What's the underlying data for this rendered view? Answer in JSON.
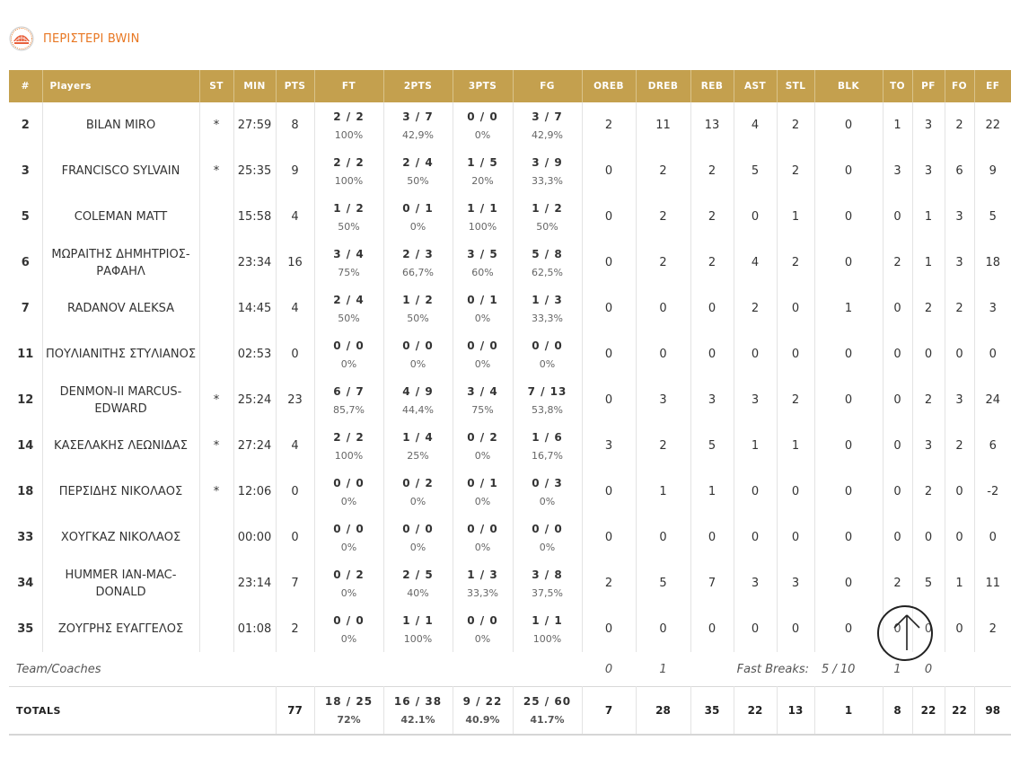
{
  "team": {
    "name": "ΠΕΡΙΣΤΕΡΙ BWIN",
    "logo_icon": "peristeri-logo-icon"
  },
  "columns": [
    "#",
    "Players",
    "ST",
    "MIN",
    "PTS",
    "FT",
    "2PTS",
    "3PTS",
    "FG",
    "OREB",
    "DREB",
    "REB",
    "AST",
    "STL",
    "BLK",
    "TO",
    "PF",
    "FO",
    "EF"
  ],
  "players": [
    {
      "num": "2",
      "name": "BILAN MIRO",
      "st": "*",
      "min": "27:59",
      "pts": "8",
      "ft": "2 / 2",
      "ft_pct": "100%",
      "p2": "3 / 7",
      "p2_pct": "42,9%",
      "p3": "0 / 0",
      "p3_pct": "0%",
      "fg": "3 / 7",
      "fg_pct": "42,9%",
      "oreb": "2",
      "dreb": "11",
      "reb": "13",
      "ast": "4",
      "stl": "2",
      "blk": "0",
      "to": "1",
      "pf": "3",
      "fo": "2",
      "ef": "22"
    },
    {
      "num": "3",
      "name": "FRANCISCO SYLVAIN",
      "st": "*",
      "min": "25:35",
      "pts": "9",
      "ft": "2 / 2",
      "ft_pct": "100%",
      "p2": "2 / 4",
      "p2_pct": "50%",
      "p3": "1 / 5",
      "p3_pct": "20%",
      "fg": "3 / 9",
      "fg_pct": "33,3%",
      "oreb": "0",
      "dreb": "2",
      "reb": "2",
      "ast": "5",
      "stl": "2",
      "blk": "0",
      "to": "3",
      "pf": "3",
      "fo": "6",
      "ef": "9"
    },
    {
      "num": "5",
      "name": "COLEMAN MATT",
      "st": "",
      "min": "15:58",
      "pts": "4",
      "ft": "1 / 2",
      "ft_pct": "50%",
      "p2": "0 / 1",
      "p2_pct": "0%",
      "p3": "1 / 1",
      "p3_pct": "100%",
      "fg": "1 / 2",
      "fg_pct": "50%",
      "oreb": "0",
      "dreb": "2",
      "reb": "2",
      "ast": "0",
      "stl": "1",
      "blk": "0",
      "to": "0",
      "pf": "1",
      "fo": "3",
      "ef": "5"
    },
    {
      "num": "6",
      "name": "ΜΩΡΑΙΤΗΣ ΔΗΜΗΤΡΙΟΣ-ΡΑΦΑΗΛ",
      "st": "",
      "min": "23:34",
      "pts": "16",
      "ft": "3 / 4",
      "ft_pct": "75%",
      "p2": "2 / 3",
      "p2_pct": "66,7%",
      "p3": "3 / 5",
      "p3_pct": "60%",
      "fg": "5 / 8",
      "fg_pct": "62,5%",
      "oreb": "0",
      "dreb": "2",
      "reb": "2",
      "ast": "4",
      "stl": "2",
      "blk": "0",
      "to": "2",
      "pf": "1",
      "fo": "3",
      "ef": "18"
    },
    {
      "num": "7",
      "name": "RADANOV ALEKSA",
      "st": "",
      "min": "14:45",
      "pts": "4",
      "ft": "2 / 4",
      "ft_pct": "50%",
      "p2": "1 / 2",
      "p2_pct": "50%",
      "p3": "0 / 1",
      "p3_pct": "0%",
      "fg": "1 / 3",
      "fg_pct": "33,3%",
      "oreb": "0",
      "dreb": "0",
      "reb": "0",
      "ast": "2",
      "stl": "0",
      "blk": "1",
      "to": "0",
      "pf": "2",
      "fo": "2",
      "ef": "3"
    },
    {
      "num": "11",
      "name": "ΠΟΥΛΙΑΝΙΤΗΣ ΣΤΥΛΙΑΝΟΣ",
      "st": "",
      "min": "02:53",
      "pts": "0",
      "ft": "0 / 0",
      "ft_pct": "0%",
      "p2": "0 / 0",
      "p2_pct": "0%",
      "p3": "0 / 0",
      "p3_pct": "0%",
      "fg": "0 / 0",
      "fg_pct": "0%",
      "oreb": "0",
      "dreb": "0",
      "reb": "0",
      "ast": "0",
      "stl": "0",
      "blk": "0",
      "to": "0",
      "pf": "0",
      "fo": "0",
      "ef": "0"
    },
    {
      "num": "12",
      "name": "DENMON-II MARCUS-EDWARD",
      "st": "*",
      "min": "25:24",
      "pts": "23",
      "ft": "6 / 7",
      "ft_pct": "85,7%",
      "p2": "4 / 9",
      "p2_pct": "44,4%",
      "p3": "3 / 4",
      "p3_pct": "75%",
      "fg": "7 / 13",
      "fg_pct": "53,8%",
      "oreb": "0",
      "dreb": "3",
      "reb": "3",
      "ast": "3",
      "stl": "2",
      "blk": "0",
      "to": "0",
      "pf": "2",
      "fo": "3",
      "ef": "24"
    },
    {
      "num": "14",
      "name": "ΚΑΣΕΛΑΚΗΣ ΛΕΩΝΙΔΑΣ",
      "st": "*",
      "min": "27:24",
      "pts": "4",
      "ft": "2 / 2",
      "ft_pct": "100%",
      "p2": "1 / 4",
      "p2_pct": "25%",
      "p3": "0 / 2",
      "p3_pct": "0%",
      "fg": "1 / 6",
      "fg_pct": "16,7%",
      "oreb": "3",
      "dreb": "2",
      "reb": "5",
      "ast": "1",
      "stl": "1",
      "blk": "0",
      "to": "0",
      "pf": "3",
      "fo": "2",
      "ef": "6"
    },
    {
      "num": "18",
      "name": "ΠΕΡΣΙΔΗΣ ΝΙΚΟΛΑΟΣ",
      "st": "*",
      "min": "12:06",
      "pts": "0",
      "ft": "0 / 0",
      "ft_pct": "0%",
      "p2": "0 / 2",
      "p2_pct": "0%",
      "p3": "0 / 1",
      "p3_pct": "0%",
      "fg": "0 / 3",
      "fg_pct": "0%",
      "oreb": "0",
      "dreb": "1",
      "reb": "1",
      "ast": "0",
      "stl": "0",
      "blk": "0",
      "to": "0",
      "pf": "2",
      "fo": "0",
      "ef": "-2"
    },
    {
      "num": "33",
      "name": "ΧΟΥΓΚΑΖ ΝΙΚΟΛΑΟΣ",
      "st": "",
      "min": "00:00",
      "pts": "0",
      "ft": "0 / 0",
      "ft_pct": "0%",
      "p2": "0 / 0",
      "p2_pct": "0%",
      "p3": "0 / 0",
      "p3_pct": "0%",
      "fg": "0 / 0",
      "fg_pct": "0%",
      "oreb": "0",
      "dreb": "0",
      "reb": "0",
      "ast": "0",
      "stl": "0",
      "blk": "0",
      "to": "0",
      "pf": "0",
      "fo": "0",
      "ef": "0"
    },
    {
      "num": "34",
      "name": "HUMMER IAN-MAC-DONALD",
      "st": "",
      "min": "23:14",
      "pts": "7",
      "ft": "0 / 2",
      "ft_pct": "0%",
      "p2": "2 / 5",
      "p2_pct": "40%",
      "p3": "1 / 3",
      "p3_pct": "33,3%",
      "fg": "3 / 8",
      "fg_pct": "37,5%",
      "oreb": "2",
      "dreb": "5",
      "reb": "7",
      "ast": "3",
      "stl": "3",
      "blk": "0",
      "to": "2",
      "pf": "5",
      "fo": "1",
      "ef": "11"
    },
    {
      "num": "35",
      "name": "ΖΟΥΓΡΗΣ ΕΥΑΓΓΕΛΟΣ",
      "st": "",
      "min": "01:08",
      "pts": "2",
      "ft": "0 / 0",
      "ft_pct": "0%",
      "p2": "1 / 1",
      "p2_pct": "100%",
      "p3": "0 / 0",
      "p3_pct": "0%",
      "fg": "1 / 1",
      "fg_pct": "100%",
      "oreb": "0",
      "dreb": "0",
      "reb": "0",
      "ast": "0",
      "stl": "0",
      "blk": "0",
      "to": "0",
      "pf": "0",
      "fo": "0",
      "ef": "2"
    }
  ],
  "team_row": {
    "label": "Team/Coaches",
    "oreb": "0",
    "dreb": "1",
    "fast_breaks_label": "Fast Breaks:",
    "fast_breaks_value": "5 / 10",
    "to": "1",
    "pf": "0"
  },
  "totals": {
    "label": "TOTALS",
    "pts": "77",
    "ft": "18 / 25",
    "ft_pct": "72%",
    "p2": "16 / 38",
    "p2_pct": "42.1%",
    "p3": "9 / 22",
    "p3_pct": "40.9%",
    "fg": "25 / 60",
    "fg_pct": "41.7%",
    "oreb": "7",
    "dreb": "28",
    "reb": "35",
    "ast": "22",
    "stl": "13",
    "blk": "1",
    "to": "8",
    "pf": "22",
    "fo": "22",
    "ef": "98"
  },
  "scroll_top_icon": "arrow-up-icon",
  "colors": {
    "header_bg": "#c4a04e",
    "team_name": "#e87722"
  }
}
